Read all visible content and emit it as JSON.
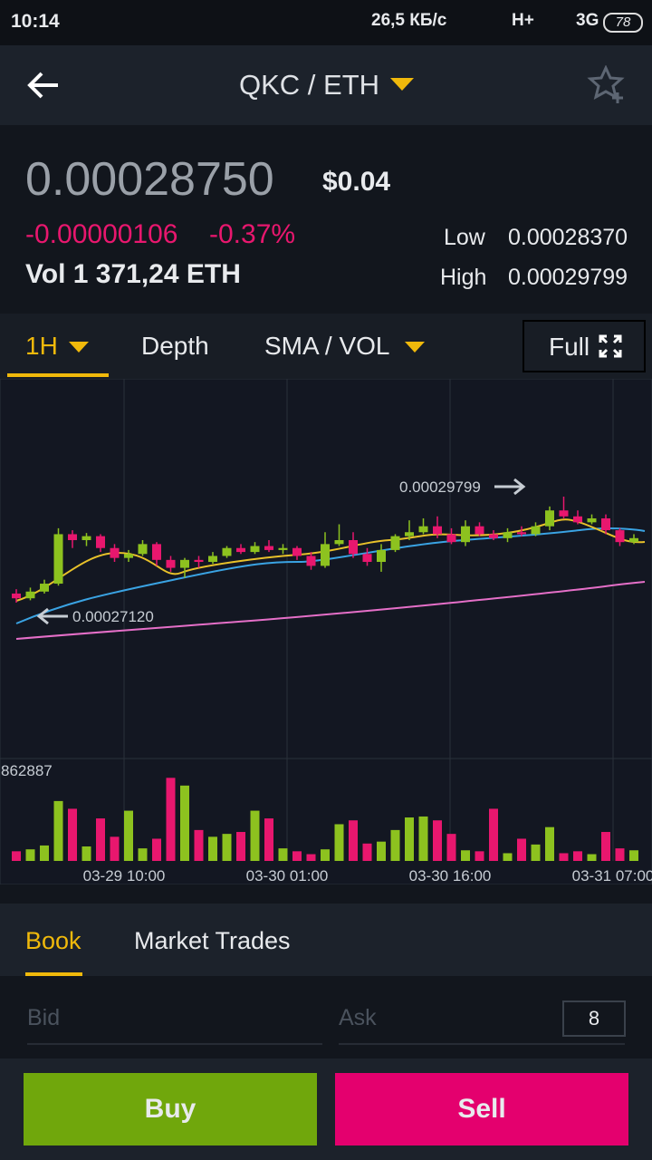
{
  "status_bar": {
    "time": "10:14",
    "speed": "26,5 КБ/с",
    "network1": "H+",
    "network2": "3G",
    "battery": "78"
  },
  "header": {
    "pair": "QKC / ETH"
  },
  "ticker": {
    "price": "0.00028750",
    "usd": "$0.04",
    "change": "-0.00000106",
    "change_pct": "-0.37%",
    "volume": "Vol 1 371,24 ETH",
    "low_label": "Low",
    "low": "0.00028370",
    "high_label": "High",
    "high": "0.00029799"
  },
  "tabs": {
    "items": [
      "1H",
      "Depth",
      "SMA / VOL"
    ],
    "full": "Full"
  },
  "chart_data": {
    "type": "candlestick",
    "up_color": "#8dc21f",
    "down_color": "#e8176e",
    "open": [
      0.0002735,
      0.0002723,
      0.000274,
      0.000276,
      0.0002885,
      0.000287,
      0.000288,
      0.000285,
      0.0002825,
      0.0002835,
      0.000286,
      0.000282,
      0.00028,
      0.000282,
      0.0002815,
      0.000283,
      0.000285,
      0.000284,
      0.0002855,
      0.0002845,
      0.000285,
      0.000283,
      0.0002805,
      0.000286,
      0.000287,
      0.0002835,
      0.0002815,
      0.0002845,
      0.000288,
      0.000289,
      0.0002905,
      0.0002885,
      0.0002865,
      0.0002905,
      0.0002885,
      0.0002875,
      0.000289,
      0.0002885,
      0.0002905,
      0.0002945,
      0.000293,
      0.0002915,
      0.0002925,
      0.0002895,
      0.0002865
    ],
    "close": [
      0.0002723,
      0.000274,
      0.000276,
      0.0002885,
      0.000287,
      0.000288,
      0.000285,
      0.0002825,
      0.0002835,
      0.000286,
      0.000282,
      0.00028,
      0.000282,
      0.0002815,
      0.000283,
      0.000285,
      0.000284,
      0.0002855,
      0.0002845,
      0.000285,
      0.000283,
      0.0002805,
      0.000286,
      0.000287,
      0.0002835,
      0.0002815,
      0.0002845,
      0.000288,
      0.000289,
      0.0002905,
      0.0002885,
      0.0002865,
      0.0002905,
      0.0002885,
      0.0002875,
      0.000289,
      0.0002885,
      0.0002905,
      0.0002945,
      0.000293,
      0.0002915,
      0.0002925,
      0.0002895,
      0.0002865,
      0.0002875
    ],
    "high": [
      0.0002746,
      0.000275,
      0.000277,
      0.00029,
      0.0002895,
      0.0002888,
      0.0002885,
      0.000286,
      0.0002845,
      0.000287,
      0.0002865,
      0.000283,
      0.0002825,
      0.000283,
      0.000284,
      0.0002855,
      0.000286,
      0.0002865,
      0.000287,
      0.000286,
      0.0002855,
      0.000284,
      0.000289,
      0.000291,
      0.000289,
      0.000285,
      0.000286,
      0.0002885,
      0.000292,
      0.0002925,
      0.000293,
      0.00029,
      0.000292,
      0.0002915,
      0.0002895,
      0.00029,
      0.0002905,
      0.0002915,
      0.0002955,
      0.00029799,
      0.0002945,
      0.0002935,
      0.0002935,
      0.00029,
      0.0002885
    ],
    "low": [
      0.0002712,
      0.0002718,
      0.0002735,
      0.0002755,
      0.000285,
      0.0002855,
      0.000284,
      0.0002815,
      0.0002815,
      0.000283,
      0.0002805,
      0.000279,
      0.0002775,
      0.00028,
      0.000281,
      0.0002825,
      0.0002835,
      0.0002835,
      0.000284,
      0.0002835,
      0.000282,
      0.0002795,
      0.00028,
      0.0002855,
      0.0002825,
      0.0002805,
      0.000279,
      0.000284,
      0.000287,
      0.0002885,
      0.0002875,
      0.000286,
      0.0002855,
      0.000288,
      0.000287,
      0.0002865,
      0.000288,
      0.000288,
      0.0002895,
      0.0002925,
      0.000291,
      0.000291,
      0.0002885,
      0.0002855,
      0.000286
    ],
    "volumes": [
      100000,
      120000,
      160000,
      620000,
      540000,
      150000,
      440000,
      250000,
      520000,
      130000,
      230000,
      860000,
      780000,
      320000,
      250000,
      280000,
      300000,
      520000,
      440000,
      130000,
      100000,
      70000,
      120000,
      380000,
      420000,
      180000,
      200000,
      320000,
      450000,
      460000,
      420000,
      280000,
      110000,
      100000,
      540000,
      80000,
      230000,
      170000,
      350000,
      80000,
      100000,
      70000,
      300000,
      130000,
      110000
    ],
    "volume_max": 862887,
    "x_labels": [
      "03-29 10:00",
      "03-30 01:00",
      "03-30 16:00",
      "03-31 07:00"
    ],
    "high_marker": "0.00029799",
    "low_marker": "0.00027120"
  },
  "book": {
    "tabs": [
      "Book",
      "Market Trades"
    ],
    "bid": "Bid",
    "ask": "Ask",
    "depth": "8"
  },
  "actions": {
    "buy": "Buy",
    "sell": "Sell"
  }
}
